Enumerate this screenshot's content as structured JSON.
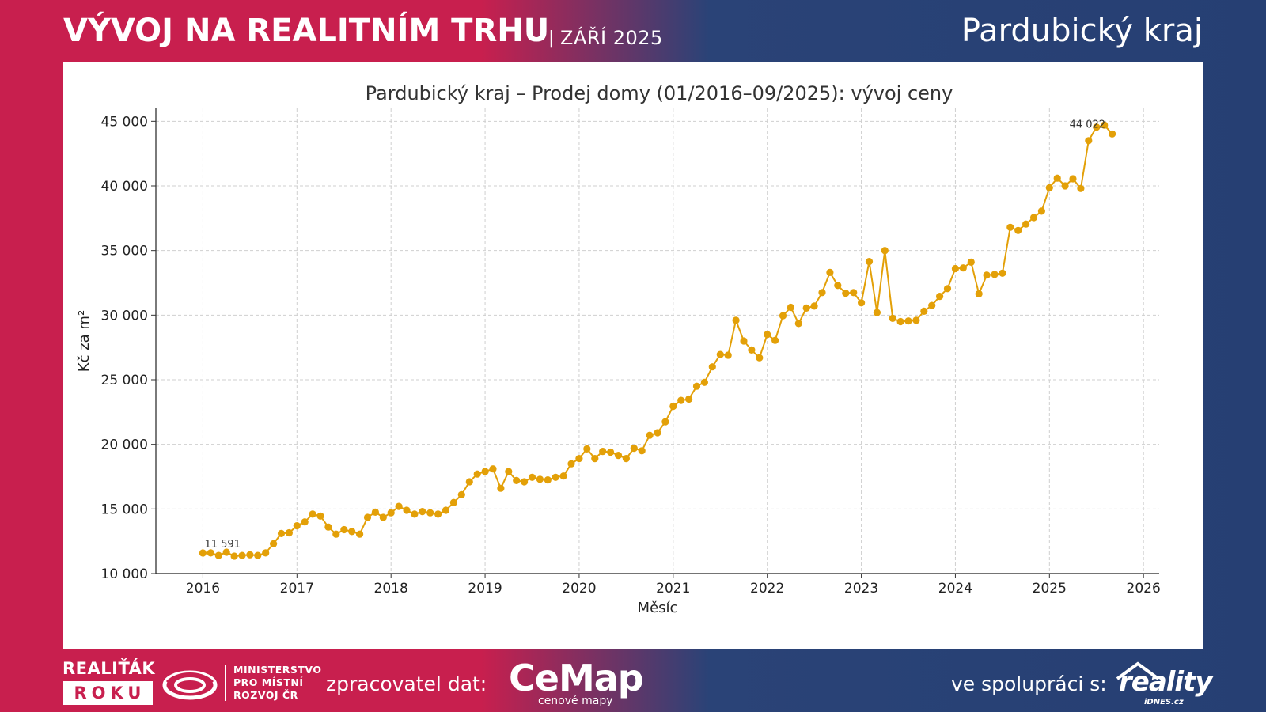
{
  "header": {
    "title": "VÝVOJ NA REALITNÍM TRHU",
    "separator": "|",
    "subtitle": "ZÁŘÍ 2025",
    "region": "Pardubický kraj"
  },
  "footer": {
    "award_top": "REALIŤÁK",
    "award_bottom": "ROKU",
    "ministry_line1": "MINISTERSTVO",
    "ministry_line2": "PRO MÍSTNÍ",
    "ministry_line3": "ROZVOJ ČR",
    "data_label": "zpracovatel dat:",
    "cemap_name": "CeMap",
    "cemap_tagline": "cenové mapy",
    "coop_label": "ve spolupráci s:",
    "reality_name": "reality",
    "reality_sub": "iDNES.cz"
  },
  "colors": {
    "brand_red": "#c81f4e",
    "brand_blue": "#263f73",
    "series": "#e3a008"
  },
  "chart_data": {
    "type": "line",
    "title": "Pardubický kraj – Prodej domy (01/2016–09/2025): vývoj ceny",
    "xlabel": "Měsíc",
    "ylabel": "Kč za m²",
    "ylim": [
      10000,
      46000
    ],
    "xlim": [
      "2015-07",
      "2026-03"
    ],
    "yticks": [
      10000,
      15000,
      20000,
      25000,
      30000,
      35000,
      40000,
      45000
    ],
    "ytick_labels": [
      "10 000",
      "15 000",
      "20 000",
      "25 000",
      "30 000",
      "35 000",
      "40 000",
      "45 000"
    ],
    "xticks": [
      "2016",
      "2017",
      "2018",
      "2019",
      "2020",
      "2021",
      "2022",
      "2023",
      "2024",
      "2025",
      "2026"
    ],
    "grid": true,
    "markers": true,
    "annotations": [
      {
        "x": "2016-01",
        "text": "11 591"
      },
      {
        "x": "2025-09",
        "text": "44 022"
      }
    ],
    "x": [
      "2016-01",
      "2016-02",
      "2016-03",
      "2016-04",
      "2016-05",
      "2016-06",
      "2016-07",
      "2016-08",
      "2016-09",
      "2016-10",
      "2016-11",
      "2016-12",
      "2017-01",
      "2017-02",
      "2017-03",
      "2017-04",
      "2017-05",
      "2017-06",
      "2017-07",
      "2017-08",
      "2017-09",
      "2017-10",
      "2017-11",
      "2017-12",
      "2018-01",
      "2018-02",
      "2018-03",
      "2018-04",
      "2018-05",
      "2018-06",
      "2018-07",
      "2018-08",
      "2018-09",
      "2018-10",
      "2018-11",
      "2018-12",
      "2019-01",
      "2019-02",
      "2019-03",
      "2019-04",
      "2019-05",
      "2019-06",
      "2019-07",
      "2019-08",
      "2019-09",
      "2019-10",
      "2019-11",
      "2019-12",
      "2020-01",
      "2020-02",
      "2020-03",
      "2020-04",
      "2020-05",
      "2020-06",
      "2020-07",
      "2020-08",
      "2020-09",
      "2020-10",
      "2020-11",
      "2020-12",
      "2021-01",
      "2021-02",
      "2021-03",
      "2021-04",
      "2021-05",
      "2021-06",
      "2021-07",
      "2021-08",
      "2021-09",
      "2021-10",
      "2021-11",
      "2021-12",
      "2022-01",
      "2022-02",
      "2022-03",
      "2022-04",
      "2022-05",
      "2022-06",
      "2022-07",
      "2022-08",
      "2022-09",
      "2022-10",
      "2022-11",
      "2022-12",
      "2023-01",
      "2023-02",
      "2023-03",
      "2023-04",
      "2023-05",
      "2023-06",
      "2023-07",
      "2023-08",
      "2023-09",
      "2023-10",
      "2023-11",
      "2023-12",
      "2024-01",
      "2024-02",
      "2024-03",
      "2024-04",
      "2024-05",
      "2024-06",
      "2024-07",
      "2024-08",
      "2024-09",
      "2024-10",
      "2024-11",
      "2024-12",
      "2025-01",
      "2025-02",
      "2025-03",
      "2025-04",
      "2025-05",
      "2025-06",
      "2025-07",
      "2025-08",
      "2025-09"
    ],
    "values": [
      11591,
      11600,
      11400,
      11650,
      11350,
      11400,
      11450,
      11400,
      11600,
      12300,
      13100,
      13150,
      13700,
      14000,
      14600,
      14450,
      13600,
      13050,
      13400,
      13250,
      13050,
      14350,
      14750,
      14350,
      14700,
      15200,
      14900,
      14600,
      14800,
      14700,
      14600,
      14900,
      15500,
      16100,
      17100,
      17700,
      17900,
      18100,
      16600,
      17900,
      17200,
      17100,
      17450,
      17300,
      17250,
      17450,
      17550,
      18500,
      18900,
      19650,
      18900,
      19450,
      19400,
      19150,
      18900,
      19700,
      19500,
      20700,
      20900,
      21750,
      22950,
      23400,
      23500,
      24500,
      24800,
      26000,
      26950,
      26900,
      29600,
      28000,
      27300,
      26700,
      28500,
      28050,
      29950,
      30600,
      29350,
      30550,
      30700,
      31750,
      33300,
      32300,
      31700,
      31750,
      30950,
      34150,
      30200,
      35000,
      29750,
      29500,
      29550,
      29600,
      30300,
      30750,
      31450,
      32050,
      33600,
      33650,
      34100,
      31650,
      33100,
      33150,
      33250,
      36800,
      36550,
      37050,
      37550,
      38050,
      39850,
      40600,
      40000,
      40550,
      39800,
      43500,
      44550,
      44700,
      44022
    ]
  }
}
